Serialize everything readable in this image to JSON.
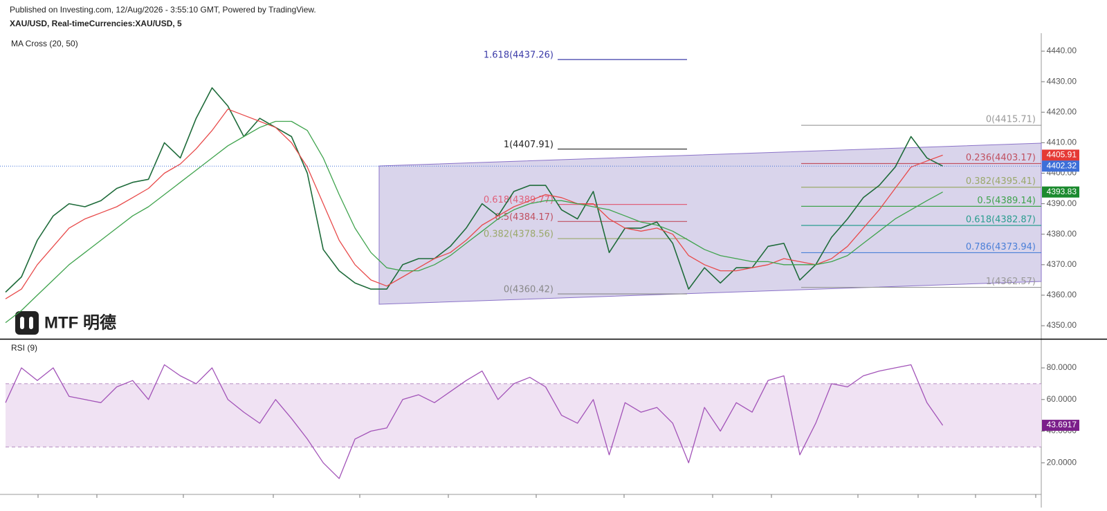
{
  "header": {
    "published": "Published on Investing.com, 12/Aug/2026 - 3:55:10 GMT, Powered by TradingView.",
    "symbol": "XAU/USD, Real-timeCurrencies:XAU/USD, 5",
    "logo": "MTF 明德"
  },
  "chart_data": [
    {
      "type": "line",
      "title": "MA Cross (20, 50)",
      "x": [
        0,
        1,
        2,
        3,
        4,
        5,
        6,
        7,
        8,
        9,
        10,
        11,
        12,
        13,
        14,
        15,
        16,
        17,
        18,
        19,
        20,
        21,
        22,
        23,
        24,
        25,
        26,
        27,
        28,
        29,
        30,
        31,
        32,
        33,
        34,
        35,
        36,
        37,
        38,
        39,
        40,
        41,
        42,
        43,
        44,
        45,
        46,
        47,
        48,
        49,
        50,
        51,
        52,
        53,
        54,
        55,
        56,
        57,
        58,
        59
      ],
      "xlim": [
        0,
        65.2
      ],
      "ylim": [
        4345.7,
        4445.9
      ],
      "yticks": [
        {
          "value": 4350,
          "label": "4350.00"
        },
        {
          "value": 4360,
          "label": "4360.00"
        },
        {
          "value": 4370,
          "label": "4370.00"
        },
        {
          "value": 4380,
          "label": "4380.00"
        },
        {
          "value": 4390,
          "label": "4390.00"
        },
        {
          "value": 4400,
          "label": "4400.00"
        },
        {
          "value": 4410,
          "label": "4410.00"
        },
        {
          "value": 4420,
          "label": "4420.00"
        },
        {
          "value": 4430,
          "label": "4430.00"
        },
        {
          "value": 4440,
          "label": "4440.00"
        }
      ],
      "series": [
        {
          "color": "#1e6b3a",
          "width": 1.6,
          "values": [
            4361,
            4366,
            4378,
            4386,
            4390,
            4389,
            4391,
            4395,
            4397,
            4398,
            4410,
            4405,
            4418,
            4428,
            4422,
            4412,
            4418,
            4415,
            4412,
            4400,
            4375,
            4368,
            4364,
            4362,
            4362,
            4370,
            4372,
            4372,
            4376,
            4382,
            4390,
            4386,
            4394,
            4396,
            4396,
            4388,
            4385,
            4394,
            4374,
            4382,
            4382,
            4384,
            4377,
            4362,
            4369,
            4364,
            4369,
            4369,
            4376,
            4377,
            4365,
            4370,
            4379,
            4385,
            4392,
            4396,
            4402,
            4412,
            4405,
            4402.32
          ]
        },
        {
          "color": "#e84a4a",
          "width": 1.3,
          "values": [
            4358.8,
            4362,
            4370,
            4376,
            4382,
            4385,
            4387,
            4389,
            4392,
            4395,
            4400,
            4403,
            4408,
            4414,
            4421,
            4419,
            4417,
            4415,
            4410,
            4402,
            4390,
            4378,
            4370,
            4365,
            4363,
            4366,
            4369,
            4372,
            4374,
            4378,
            4383,
            4386,
            4389,
            4391,
            4393,
            4392,
            4390,
            4390,
            4385,
            4382,
            4381,
            4382,
            4380,
            4373,
            4370,
            4368,
            4368,
            4369,
            4370,
            4372,
            4371,
            4370,
            4372,
            4376,
            4382,
            4388,
            4395,
            4402,
            4404,
            4405.91
          ]
        },
        {
          "color": "#3fa34d",
          "width": 1.3,
          "values": [
            4351,
            4355,
            4360,
            4365,
            4370,
            4374,
            4378,
            4382,
            4386,
            4389,
            4393,
            4397,
            4401,
            4405,
            4409,
            4412,
            4415,
            4417,
            4417,
            4414,
            4405,
            4393,
            4382,
            4374,
            4369,
            4368,
            4368,
            4370,
            4373,
            4377,
            4381,
            4385,
            4388,
            4390,
            4391,
            4391,
            4390,
            4389,
            4388,
            4386,
            4384,
            4383,
            4381,
            4378,
            4375,
            4373,
            4372,
            4371,
            4371,
            4370,
            4370,
            4370,
            4371,
            4373,
            4377,
            4381,
            4385,
            4388,
            4391,
            4393.83
          ]
        }
      ],
      "price_tags": [
        {
          "value": 4405.91,
          "color": "#e53935"
        },
        {
          "value": 4402.32,
          "color": "#3d6fd8",
          "dotted": true
        },
        {
          "value": 4393.83,
          "color": "#1b8a2e"
        }
      ],
      "fibs": [
        {
          "levels": [
            {
              "label": "1.618(4437.26)",
              "value": 4437.26,
              "color": "#3b3ba8"
            },
            {
              "label": "1(4407.91)",
              "value": 4407.91,
              "color": "#222222"
            },
            {
              "label": "0.618(4389.77)",
              "value": 4389.77,
              "color": "#e0607a"
            },
            {
              "label": "0.5(4384.17)",
              "value": 4384.17,
              "color": "#c05060"
            },
            {
              "label": "0.382(4378.56)",
              "value": 4378.56,
              "color": "#9aa86a"
            },
            {
              "label": "0(4360.42)",
              "value": 4360.42,
              "color": "#888888"
            }
          ]
        },
        {
          "levels": [
            {
              "label": "0(4415.71)",
              "value": 4415.71,
              "color": "#999999"
            },
            {
              "label": "0.236(4403.17)",
              "value": 4403.17,
              "color": "#c05060"
            },
            {
              "label": "0.382(4395.41)",
              "value": 4395.41,
              "color": "#9aa86a"
            },
            {
              "label": "0.5(4389.14)",
              "value": 4389.14,
              "color": "#3fa34d"
            },
            {
              "label": "0.618(4382.87)",
              "value": 4382.87,
              "color": "#2a9d8f"
            },
            {
              "label": "0.786(4373.94)",
              "value": 4373.94,
              "color": "#4a7fd8"
            },
            {
              "label": "1(4362.57)",
              "value": 4362.57,
              "color": "#999999"
            }
          ]
        }
      ]
    },
    {
      "type": "line",
      "title": "RSI (9)",
      "x": [
        0,
        1,
        2,
        3,
        4,
        5,
        6,
        7,
        8,
        9,
        10,
        11,
        12,
        13,
        14,
        15,
        16,
        17,
        18,
        19,
        20,
        21,
        22,
        23,
        24,
        25,
        26,
        27,
        28,
        29,
        30,
        31,
        32,
        33,
        34,
        35,
        36,
        37,
        38,
        39,
        40,
        41,
        42,
        43,
        44,
        45,
        46,
        47,
        48,
        49,
        50,
        51,
        52,
        53,
        54,
        55,
        56,
        57,
        58,
        59
      ],
      "xlim": [
        0,
        65.2
      ],
      "ylim": [
        0,
        97.5
      ],
      "yticks": [
        {
          "value": 20,
          "label": "20.0000"
        },
        {
          "value": 40,
          "label": "40.0000"
        },
        {
          "value": 60,
          "label": "60.0000"
        },
        {
          "value": 80,
          "label": "80.0000"
        }
      ],
      "band": [
        30,
        70
      ],
      "series": [
        {
          "color": "#a253b8",
          "width": 1.3,
          "values": [
            58,
            80,
            72,
            80,
            62,
            60,
            58,
            68,
            72,
            60,
            82,
            75,
            70,
            80,
            60,
            52,
            45,
            60,
            48,
            35,
            20,
            10,
            35,
            40,
            42,
            60,
            63,
            58,
            65,
            72,
            78,
            60,
            70,
            74,
            68,
            50,
            45,
            60,
            25,
            58,
            52,
            55,
            45,
            20,
            55,
            40,
            58,
            52,
            72,
            75,
            25,
            45,
            70,
            68,
            75,
            78,
            80,
            82,
            58,
            43.6917
          ]
        }
      ],
      "price_tags": [
        {
          "value": 43.6917,
          "color": "#7b1f8a"
        }
      ]
    }
  ]
}
